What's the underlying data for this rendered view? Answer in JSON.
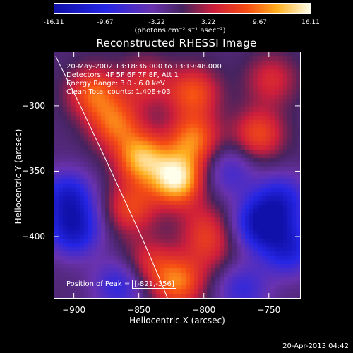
{
  "colorbar": {
    "tick_labels": [
      "-16.11",
      "-9.67",
      "-3.22",
      "3.22",
      "9.67",
      "16.11"
    ],
    "unit": "(photons cm⁻² s⁻¹ asec⁻²)"
  },
  "title": "Reconstructed RHESSI Image",
  "annotations": {
    "time": "20-May-2002 13:18:36.000 to 13:19:48.000",
    "detectors": "Detectors: 4F 5F 6F 7F 8F, Att 1",
    "energy": "Energy Range: 3.0 - 6.0 keV",
    "clean": "Clean    Total counts: 1.40E+03",
    "peak_label": "Position of Peak = ",
    "peak_value": "[-821,-356]"
  },
  "footer_date": "20-Apr-2013 04:42",
  "chart_data": {
    "type": "heatmap",
    "title": "Reconstructed RHESSI Image",
    "xlabel": "Heliocentric X (arcsec)",
    "ylabel": "Heliocentric Y (arcsec)",
    "xlim": [
      -915,
      -726
    ],
    "ylim": [
      -447,
      -259
    ],
    "x_ticks": [
      -900,
      -850,
      -800,
      -750
    ],
    "y_ticks": [
      -300,
      -350,
      -400
    ],
    "color_range": [
      -16.11,
      16.11
    ],
    "peak_position": [
      -821,
      -356
    ],
    "limb_curve": [
      [
        -914,
        -262
      ],
      [
        -895,
        -300
      ],
      [
        -876,
        -340
      ],
      [
        -862,
        -370
      ],
      [
        -848,
        -400
      ],
      [
        -835,
        -430
      ],
      [
        -828,
        -447
      ]
    ],
    "sources": [
      {
        "x": -821,
        "y": -356,
        "value": 16.1
      },
      {
        "x": -848,
        "y": -340,
        "value": 13.0
      },
      {
        "x": -868,
        "y": -314,
        "value": 9.5
      },
      {
        "x": -808,
        "y": -326,
        "value": 10.5
      },
      {
        "x": -808,
        "y": -290,
        "value": 9.0
      },
      {
        "x": -885,
        "y": -290,
        "value": 9.5
      },
      {
        "x": -845,
        "y": -282,
        "value": 6.0
      },
      {
        "x": -758,
        "y": -322,
        "value": 8.5
      },
      {
        "x": -748,
        "y": -280,
        "value": 6.0
      },
      {
        "x": -856,
        "y": -378,
        "value": 8.0
      },
      {
        "x": -800,
        "y": -392,
        "value": 5.0
      },
      {
        "x": -820,
        "y": -435,
        "value": 10.5
      },
      {
        "x": -843,
        "y": -420,
        "value": 6.0
      },
      {
        "x": -795,
        "y": -410,
        "value": 4.5
      },
      {
        "x": -905,
        "y": -370,
        "value": -11.0
      },
      {
        "x": -900,
        "y": -395,
        "value": -12.0
      },
      {
        "x": -755,
        "y": -390,
        "value": -14.5
      },
      {
        "x": -740,
        "y": -372,
        "value": -9.0
      },
      {
        "x": -735,
        "y": -410,
        "value": -10.0
      },
      {
        "x": -865,
        "y": -437,
        "value": -8.0
      },
      {
        "x": -780,
        "y": -350,
        "value": -6.0
      },
      {
        "x": -770,
        "y": -440,
        "value": -7.0
      }
    ]
  }
}
